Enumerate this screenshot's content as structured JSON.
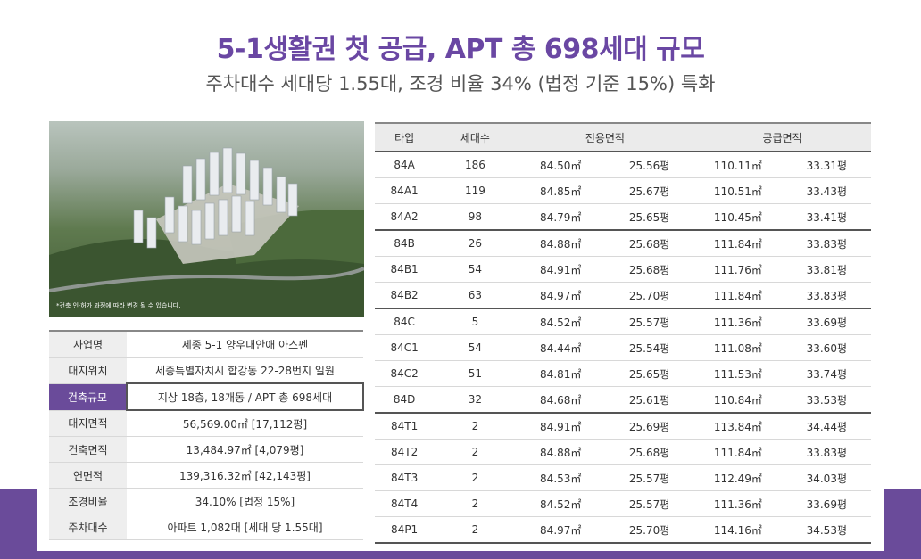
{
  "header": {
    "title": "5-1생활권 첫 공급, APT 총 698세대 규모",
    "subtitle": "주차대수 세대당 1.55대, 조경 비율 34% (법정 기준 15%) 특화"
  },
  "photo": {
    "note": "*건축 인·허가 과정에 따라 변경 될 수 있습니다."
  },
  "info": [
    {
      "label": "사업명",
      "value": "세종 5-1 양우내안애 아스펜"
    },
    {
      "label": "대지위치",
      "value": "세종특별자치시 합강동 22-28번지 일원"
    },
    {
      "label": "건축규모",
      "value": "지상 18층, 18개동 / APT 총 698세대"
    },
    {
      "label": "대지면적",
      "value": "56,569.00㎡ [17,112평]"
    },
    {
      "label": "건축면적",
      "value": "13,484.97㎡ [4,079평]"
    },
    {
      "label": "연면적",
      "value": "139,316.32㎡ [42,143평]"
    },
    {
      "label": "조경비율",
      "value": "34.10% [법정 15%]"
    },
    {
      "label": "주차대수",
      "value": "아파트 1,082대 [세대 당 1.55대]"
    }
  ],
  "types_header": [
    "타입",
    "세대수",
    "전용면적",
    "공급면적"
  ],
  "types": [
    [
      "84A",
      "186",
      "84.50㎡",
      "25.56평",
      "110.11㎡",
      "33.31평"
    ],
    [
      "84A1",
      "119",
      "84.85㎡",
      "25.67평",
      "110.51㎡",
      "33.43평"
    ],
    [
      "84A2",
      "98",
      "84.79㎡",
      "25.65평",
      "110.45㎡",
      "33.41평"
    ],
    [
      "84B",
      "26",
      "84.88㎡",
      "25.68평",
      "111.84㎡",
      "33.83평"
    ],
    [
      "84B1",
      "54",
      "84.91㎡",
      "25.68평",
      "111.76㎡",
      "33.81평"
    ],
    [
      "84B2",
      "63",
      "84.97㎡",
      "25.70평",
      "111.84㎡",
      "33.83평"
    ],
    [
      "84C",
      "5",
      "84.52㎡",
      "25.57평",
      "111.36㎡",
      "33.69평"
    ],
    [
      "84C1",
      "54",
      "84.44㎡",
      "25.54평",
      "111.08㎡",
      "33.60평"
    ],
    [
      "84C2",
      "51",
      "84.81㎡",
      "25.65평",
      "111.53㎡",
      "33.74평"
    ],
    [
      "84D",
      "32",
      "84.68㎡",
      "25.61평",
      "110.84㎡",
      "33.53평"
    ],
    [
      "84T1",
      "2",
      "84.91㎡",
      "25.69평",
      "113.84㎡",
      "34.44평"
    ],
    [
      "84T2",
      "2",
      "84.88㎡",
      "25.68평",
      "111.84㎡",
      "33.83평"
    ],
    [
      "84T3",
      "2",
      "84.53㎡",
      "25.57평",
      "112.49㎡",
      "34.03평"
    ],
    [
      "84T4",
      "2",
      "84.52㎡",
      "25.57평",
      "111.36㎡",
      "33.69평"
    ],
    [
      "84P1",
      "2",
      "84.97㎡",
      "25.70평",
      "114.16㎡",
      "34.53평"
    ]
  ]
}
